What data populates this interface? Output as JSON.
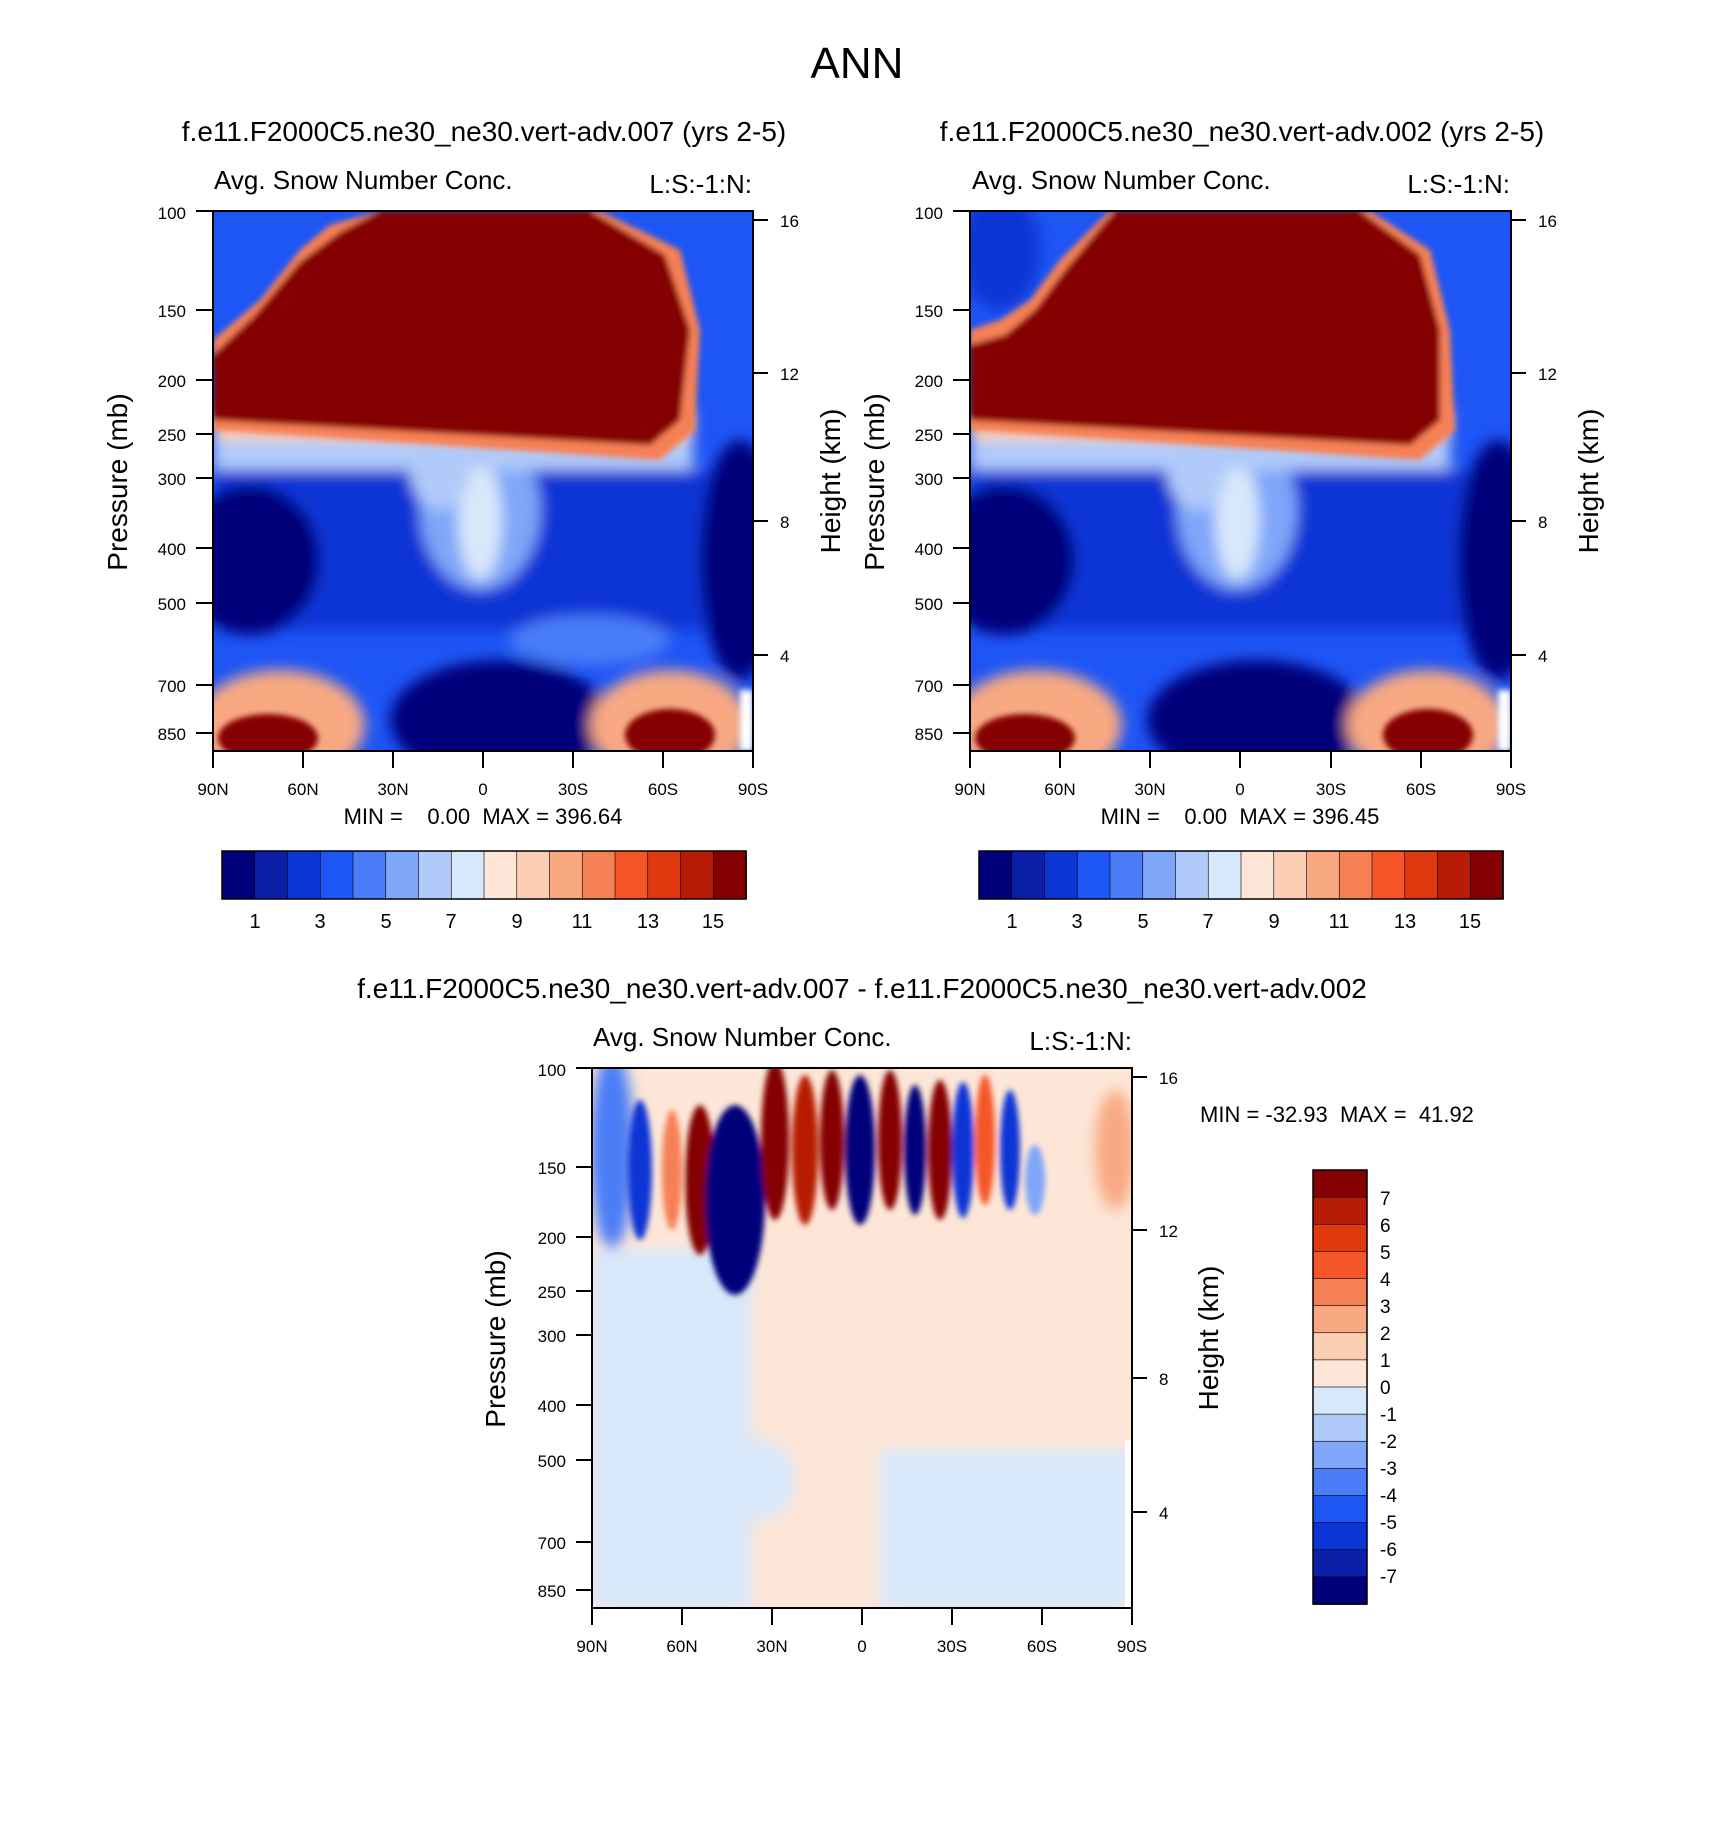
{
  "page_title": "ANN",
  "colors": {
    "seq_palette": [
      "#00007a",
      "#0a1fa8",
      "#0c35d6",
      "#1e55f5",
      "#4a7df7",
      "#7fa6f9",
      "#b0caf9",
      "#d8e8fb",
      "#fde6d7",
      "#fbcdb2",
      "#f8a982",
      "#f68055",
      "#f55627",
      "#e0380f",
      "#b71c06",
      "#850000"
    ],
    "diff_palette": [
      "#00007a",
      "#0a1fa8",
      "#0c35d6",
      "#1e55f5",
      "#4a7df7",
      "#7fa6f9",
      "#b0caf9",
      "#d8e8fb",
      "#fde6d7",
      "#fbcdb2",
      "#f8a982",
      "#f68055",
      "#f55627",
      "#e0380f",
      "#b71c06",
      "#850000"
    ]
  },
  "chart_data": [
    {
      "type": "heatmap",
      "panel": "model-a",
      "title": "f.e11.F2000C5.ne30_ne30.vert-adv.007 (yrs 2-5)",
      "subtitle_left": "Avg. Snow Number Conc.",
      "subtitle_right": "L:S:-1:N:",
      "xlabel": "",
      "ylabel": "Pressure (mb)",
      "ylabel_right": "Height (km)",
      "x_ticks": [
        "90N",
        "60N",
        "30N",
        "0",
        "30S",
        "60S",
        "90S"
      ],
      "y_ticks": [
        "100",
        "150",
        "200",
        "250",
        "300",
        "400",
        "500",
        "700",
        "850"
      ],
      "y_ticks_right": [
        "16",
        "12",
        "8",
        "4"
      ],
      "stats": "MIN =    0.00  MAX = 396.64",
      "levels": [
        "1",
        "3",
        "5",
        "7",
        "9",
        "11",
        "13",
        "15"
      ],
      "min": 0.0,
      "max": 396.64
    },
    {
      "type": "heatmap",
      "panel": "model-b",
      "title": "f.e11.F2000C5.ne30_ne30.vert-adv.002 (yrs 2-5)",
      "subtitle_left": "Avg. Snow Number Conc.",
      "subtitle_right": "L:S:-1:N:",
      "xlabel": "",
      "ylabel": "Pressure (mb)",
      "ylabel_right": "Height (km)",
      "x_ticks": [
        "90N",
        "60N",
        "30N",
        "0",
        "30S",
        "60S",
        "90S"
      ],
      "y_ticks": [
        "100",
        "150",
        "200",
        "250",
        "300",
        "400",
        "500",
        "700",
        "850"
      ],
      "y_ticks_right": [
        "16",
        "12",
        "8",
        "4"
      ],
      "stats": "MIN =    0.00  MAX = 396.45",
      "levels": [
        "1",
        "3",
        "5",
        "7",
        "9",
        "11",
        "13",
        "15"
      ],
      "min": 0.0,
      "max": 396.45
    },
    {
      "type": "heatmap",
      "panel": "difference",
      "title": "f.e11.F2000C5.ne30_ne30.vert-adv.007 - f.e11.F2000C5.ne30_ne30.vert-adv.002",
      "subtitle_left": "Avg. Snow Number Conc.",
      "subtitle_right": "L:S:-1:N:",
      "xlabel": "",
      "ylabel": "Pressure (mb)",
      "ylabel_right": "Height (km)",
      "x_ticks": [
        "90N",
        "60N",
        "30N",
        "0",
        "30S",
        "60S",
        "90S"
      ],
      "y_ticks": [
        "100",
        "150",
        "200",
        "250",
        "300",
        "400",
        "500",
        "700",
        "850"
      ],
      "y_ticks_right": [
        "16",
        "12",
        "8",
        "4"
      ],
      "stats": "MIN = -32.93  MAX =  41.92",
      "levels": [
        "7",
        "6",
        "5",
        "4",
        "3",
        "2",
        "1",
        "0",
        "-1",
        "-2",
        "-3",
        "-4",
        "-5",
        "-6",
        "-7"
      ],
      "min": -32.93,
      "max": 41.92
    }
  ]
}
